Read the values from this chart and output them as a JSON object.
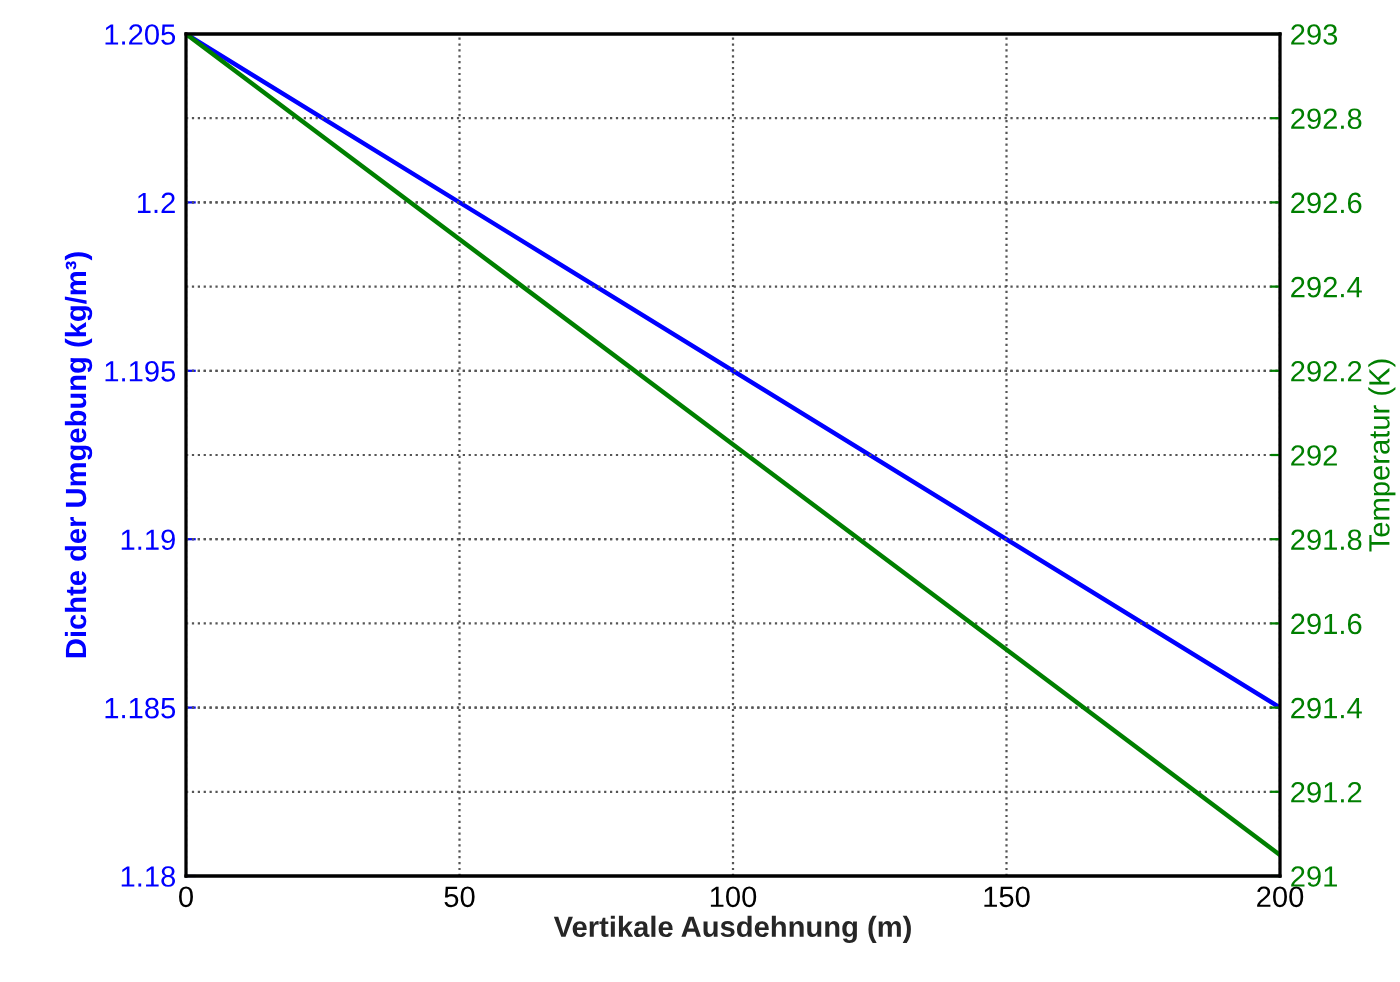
{
  "chart_data": {
    "type": "line",
    "xlabel": "Vertikale Ausdehnung (m)",
    "ylabel": "Dichte der Umgebung (kg/m³)",
    "y2label": "Temperatur (K)",
    "x": [
      0,
      200
    ],
    "series": [
      {
        "color": "#0000ff",
        "values": [
          1.205,
          1.185
        ]
      },
      {
        "color": "#007f00",
        "values": [
          293,
          291.05
        ],
        "axis": "y2"
      }
    ],
    "xlim": [
      0,
      200
    ],
    "xticks": [
      0,
      50,
      100,
      150,
      200
    ],
    "ylim": [
      1.18,
      1.205
    ],
    "yticks": [
      1.18,
      1.185,
      1.19,
      1.195,
      1.2,
      1.205
    ],
    "y2lim": [
      291,
      293
    ],
    "y2ticks": [
      291,
      291.2,
      291.4,
      291.6,
      291.8,
      292,
      292.2,
      292.4,
      292.6,
      292.8,
      293
    ],
    "grid": true,
    "legend": false
  }
}
